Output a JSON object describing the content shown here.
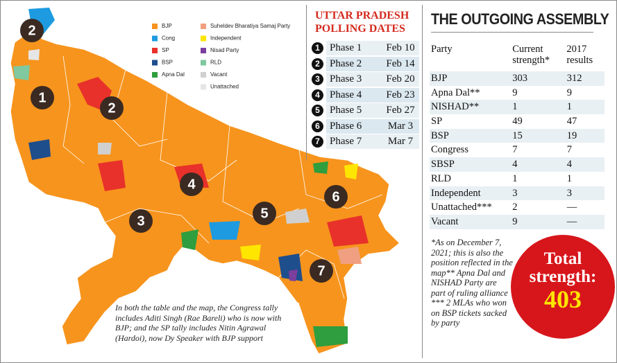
{
  "map": {
    "legend": [
      {
        "label": "BJP",
        "color": "#f7941d"
      },
      {
        "label": "Cong",
        "color": "#1e9be0"
      },
      {
        "label": "SP",
        "color": "#e8312a"
      },
      {
        "label": "BSP",
        "color": "#1f4e8c"
      },
      {
        "label": "Apna Dal",
        "color": "#2e9e3e"
      },
      {
        "label": "Suheldev Bharatiya Samaj Party",
        "color": "#f0a080"
      },
      {
        "label": "Independent",
        "color": "#ffe600"
      },
      {
        "label": "Nisad Party",
        "color": "#7b3f9e"
      },
      {
        "label": "RLD",
        "color": "#7fc8a0"
      },
      {
        "label": "Vacant",
        "color": "#d0d0d0"
      },
      {
        "label": "Unattached",
        "color": "#e6e6e6"
      }
    ],
    "phase_markers": [
      2,
      1,
      2,
      4,
      3,
      5,
      6,
      7
    ],
    "note": "In both the table and the map, the Congress tally includes Aditi Singh (Rae Bareli) who is now with BJP; and the SP tally includes Nitin Agrawal (Hardoi), now Dy Speaker with BJP support"
  },
  "polling": {
    "title": "UTTAR PRADESH POLLING DATES",
    "rows": [
      [
        1,
        "Phase 1",
        "Feb 10"
      ],
      [
        2,
        "Phase 2",
        "Feb 14"
      ],
      [
        3,
        "Phase 3",
        "Feb 20"
      ],
      [
        4,
        "Phase 4",
        "Feb 23"
      ],
      [
        5,
        "Phase 5",
        "Feb 27"
      ],
      [
        6,
        "Phase 6",
        "Mar 3"
      ],
      [
        7,
        "Phase 7",
        "Mar 7"
      ]
    ]
  },
  "assembly": {
    "title": "THE OUTGOING ASSEMBLY",
    "headers": [
      "Party",
      "Current strength*",
      "2017 results"
    ],
    "rows": [
      [
        "BJP",
        "303",
        "312"
      ],
      [
        "Apna Dal**",
        "9",
        "9"
      ],
      [
        "NISHAD**",
        "1",
        "1"
      ],
      [
        "SP",
        "49",
        "47"
      ],
      [
        "BSP",
        "15",
        "19"
      ],
      [
        "Congress",
        "7",
        "7"
      ],
      [
        "SBSP",
        "4",
        "4"
      ],
      [
        "RLD",
        "1",
        "1"
      ],
      [
        "Independent",
        "3",
        "3"
      ],
      [
        "Unattached***",
        "2",
        "—"
      ],
      [
        "Vacant",
        "9",
        "—"
      ]
    ],
    "footnote": "*As on December 7, 2021; this is also the position reflected in the map** Apna Dal and NISHAD Party are part of ruling alliance *** 2 MLAs who won on BSP tickets sacked by party",
    "total_label": "Total strength:",
    "total": "403"
  }
}
